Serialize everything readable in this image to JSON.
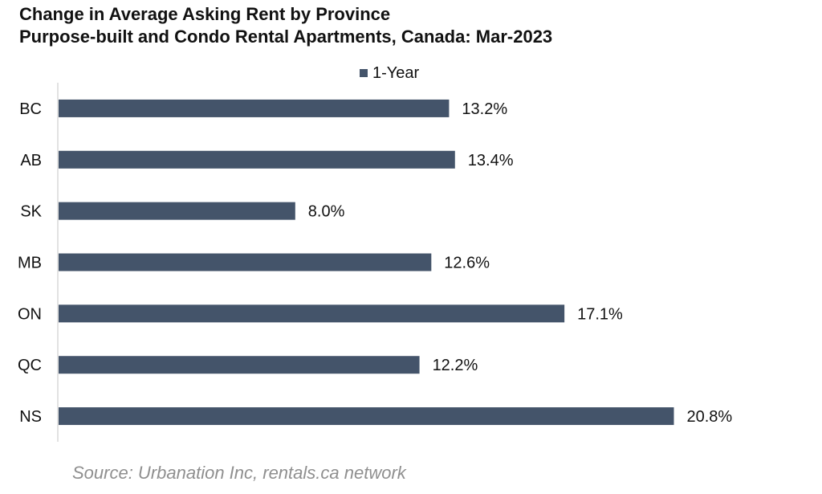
{
  "chart_data": {
    "type": "bar",
    "orientation": "horizontal",
    "title": "Change in Average Asking Rent by Province",
    "subtitle": "Purpose-built and Condo Rental Apartments, Canada: Mar-2023",
    "categories": [
      "BC",
      "AB",
      "SK",
      "MB",
      "ON",
      "QC",
      "NS"
    ],
    "series": [
      {
        "name": "1-Year",
        "values": [
          13.2,
          13.4,
          8.0,
          12.6,
          17.1,
          12.2,
          20.8
        ],
        "labels": [
          "13.2%",
          "13.4%",
          "8.0%",
          "12.6%",
          "17.1%",
          "12.2%",
          "20.8%"
        ],
        "color": "#44546a"
      }
    ],
    "legend_position": "top-center",
    "grid": false,
    "xlim": [
      0,
      22
    ]
  },
  "footer": {
    "source": "Source: Urbanation Inc, rentals.ca network"
  }
}
